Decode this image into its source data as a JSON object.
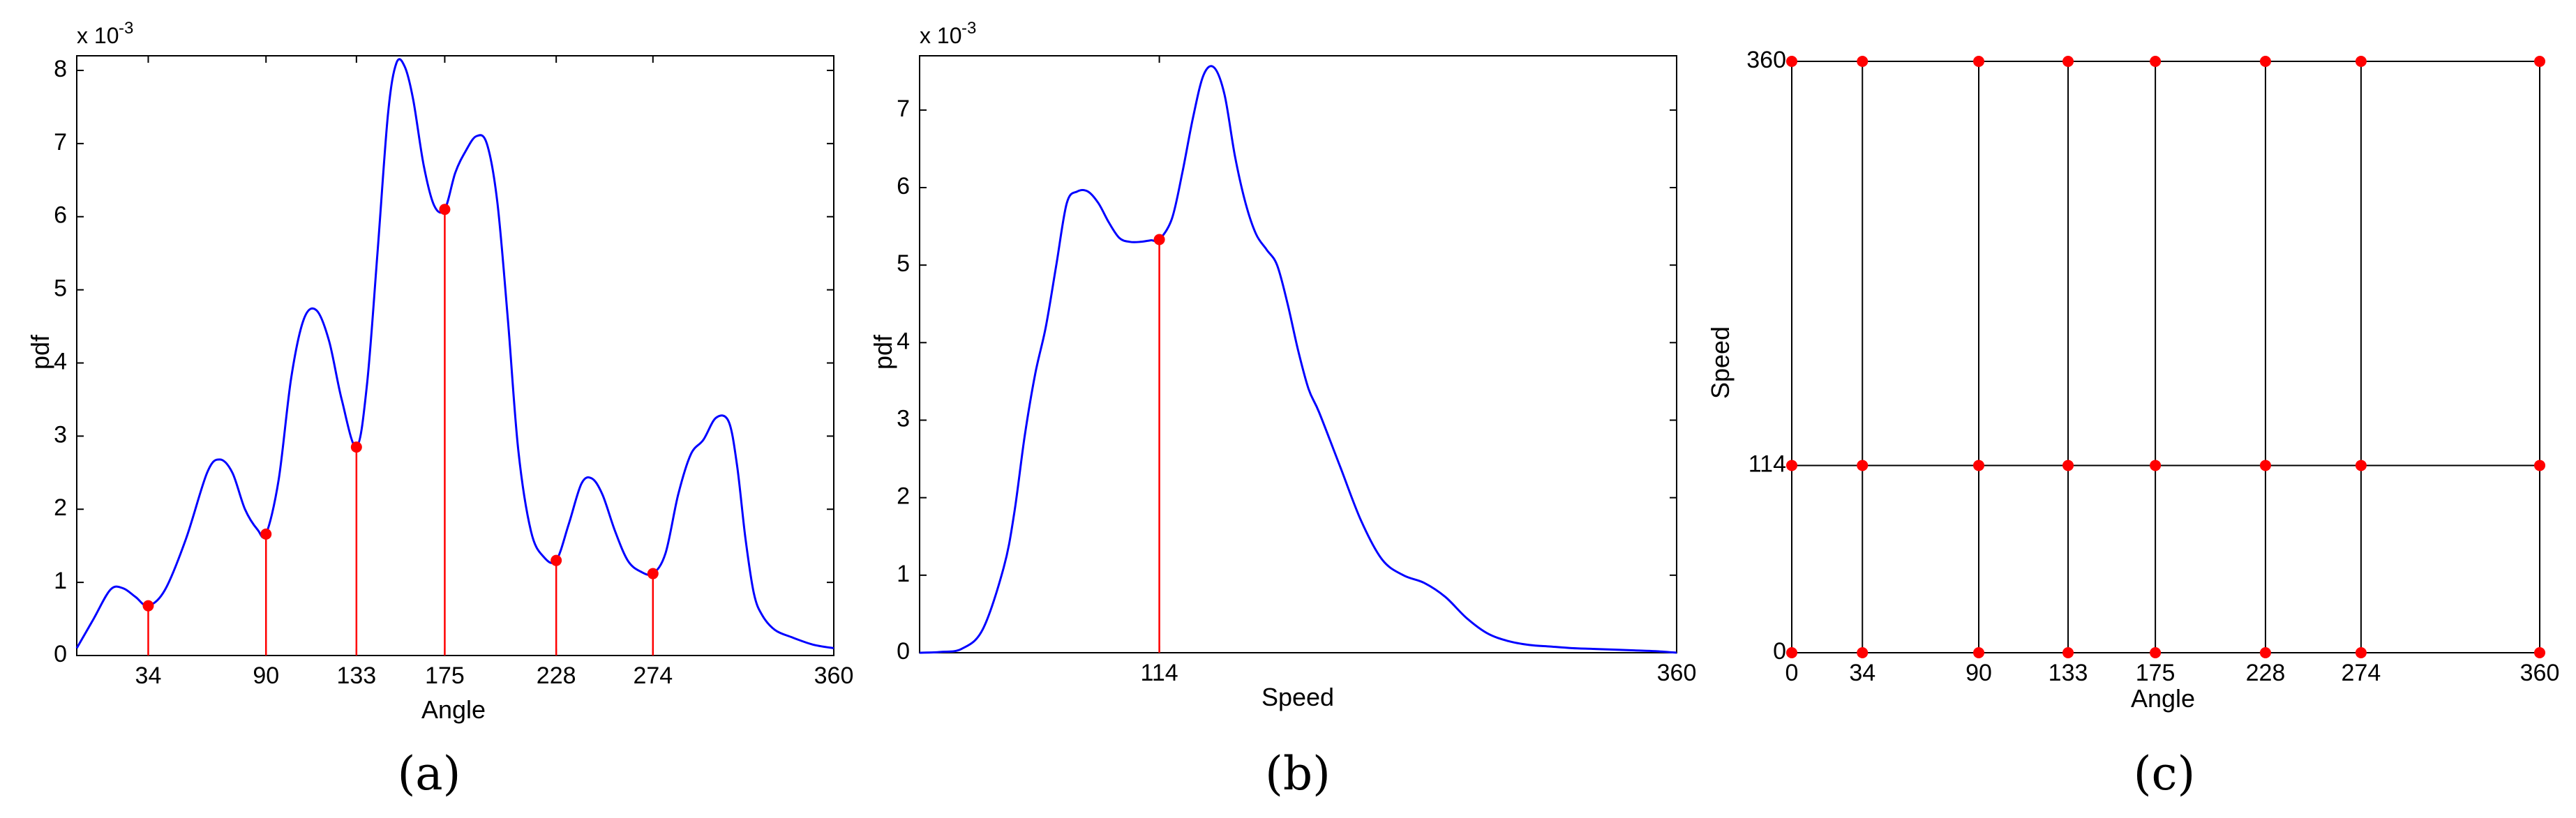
{
  "chart_data": [
    {
      "panel": "(a)",
      "type": "line",
      "xlabel": "Angle",
      "ylabel": "pdf",
      "y_multiplier": "x 10",
      "y_exponent": "-3",
      "xlim": [
        0,
        360
      ],
      "ylim": [
        0,
        8.2
      ],
      "yticks": [
        "0",
        "1",
        "2",
        "3",
        "4",
        "5",
        "6",
        "7",
        "8"
      ],
      "xticks": [
        "34",
        "90",
        "133",
        "175",
        "228",
        "274",
        "360"
      ],
      "colors": {
        "curve": "#0000ff",
        "stems": "#ff0000"
      },
      "series": [
        {
          "x": [
            0,
            8,
            16,
            22,
            28,
            34,
            42,
            52,
            62,
            68,
            74,
            80,
            86,
            90,
            96,
            102,
            108,
            114,
            120,
            126,
            133,
            138,
            143,
            148,
            152,
            156,
            160,
            165,
            170,
            175,
            180,
            185,
            190,
            195,
            200,
            205,
            210,
            216,
            222,
            228,
            234,
            240,
            245,
            250,
            256,
            262,
            268,
            274,
            280,
            286,
            292,
            298,
            304,
            310,
            314,
            318,
            322,
            326,
            332,
            340,
            350,
            360
          ],
          "y": [
            0.1,
            0.5,
            0.9,
            0.92,
            0.8,
            0.68,
            0.9,
            1.6,
            2.5,
            2.68,
            2.5,
            2.0,
            1.72,
            1.66,
            2.4,
            3.8,
            4.6,
            4.72,
            4.3,
            3.5,
            2.85,
            3.7,
            5.5,
            7.4,
            8.1,
            8.05,
            7.6,
            6.7,
            6.15,
            6.1,
            6.6,
            6.9,
            7.1,
            7.0,
            6.2,
            4.6,
            2.8,
            1.7,
            1.35,
            1.3,
            1.8,
            2.35,
            2.42,
            2.2,
            1.7,
            1.3,
            1.15,
            1.12,
            1.4,
            2.2,
            2.75,
            2.95,
            3.25,
            3.2,
            2.6,
            1.6,
            0.85,
            0.55,
            0.35,
            0.25,
            0.15,
            0.1
          ]
        }
      ],
      "stems": [
        {
          "x": 34,
          "y": 0.68
        },
        {
          "x": 90,
          "y": 1.66
        },
        {
          "x": 133,
          "y": 2.85
        },
        {
          "x": 175,
          "y": 6.1
        },
        {
          "x": 228,
          "y": 1.3
        },
        {
          "x": 274,
          "y": 1.12
        }
      ]
    },
    {
      "panel": "(b)",
      "type": "line",
      "xlabel": "Speed",
      "ylabel": "pdf",
      "y_multiplier": "x 10",
      "y_exponent": "-3",
      "xlim": [
        0,
        360
      ],
      "ylim": [
        0,
        7.7
      ],
      "yticks": [
        "0",
        "1",
        "2",
        "3",
        "4",
        "5",
        "6",
        "7"
      ],
      "xticks": [
        "114",
        "360"
      ],
      "colors": {
        "curve": "#0000ff",
        "stems": "#ff0000"
      },
      "series": [
        {
          "x": [
            0,
            10,
            20,
            30,
            40,
            45,
            50,
            55,
            60,
            65,
            70,
            75,
            80,
            85,
            90,
            95,
            100,
            105,
            110,
            114,
            120,
            125,
            130,
            135,
            140,
            145,
            150,
            155,
            160,
            165,
            170,
            175,
            180,
            185,
            190,
            200,
            210,
            220,
            230,
            240,
            250,
            260,
            270,
            280,
            290,
            300,
            310,
            320,
            330,
            340,
            350,
            360
          ],
          "y": [
            0,
            0.01,
            0.05,
            0.3,
            1.1,
            1.8,
            2.8,
            3.6,
            4.2,
            5.0,
            5.8,
            5.95,
            5.95,
            5.8,
            5.55,
            5.35,
            5.3,
            5.3,
            5.32,
            5.33,
            5.6,
            6.2,
            6.9,
            7.45,
            7.55,
            7.2,
            6.4,
            5.8,
            5.4,
            5.2,
            5.0,
            4.5,
            3.9,
            3.4,
            3.1,
            2.4,
            1.7,
            1.2,
            1.0,
            0.9,
            0.72,
            0.45,
            0.25,
            0.15,
            0.1,
            0.08,
            0.06,
            0.05,
            0.04,
            0.03,
            0.02,
            0.0
          ]
        }
      ],
      "stems": [
        {
          "x": 114,
          "y": 5.33
        }
      ]
    },
    {
      "panel": "(c)",
      "type": "scatter",
      "xlabel": "Angle",
      "ylabel": "Speed",
      "xlim": [
        0,
        360
      ],
      "ylim": [
        0,
        360
      ],
      "x_grid": [
        0,
        34,
        90,
        133,
        175,
        228,
        274,
        360
      ],
      "y_grid": [
        0,
        114,
        360
      ],
      "xticks": [
        "0",
        "34",
        "90",
        "133",
        "175",
        "228",
        "274",
        "360"
      ],
      "yticks": [
        "0",
        "114",
        "360"
      ],
      "colors": {
        "lines": "#000000",
        "points": "#ff0000"
      }
    }
  ],
  "panel_labels": [
    "(a)",
    "(b)",
    "(c)"
  ]
}
